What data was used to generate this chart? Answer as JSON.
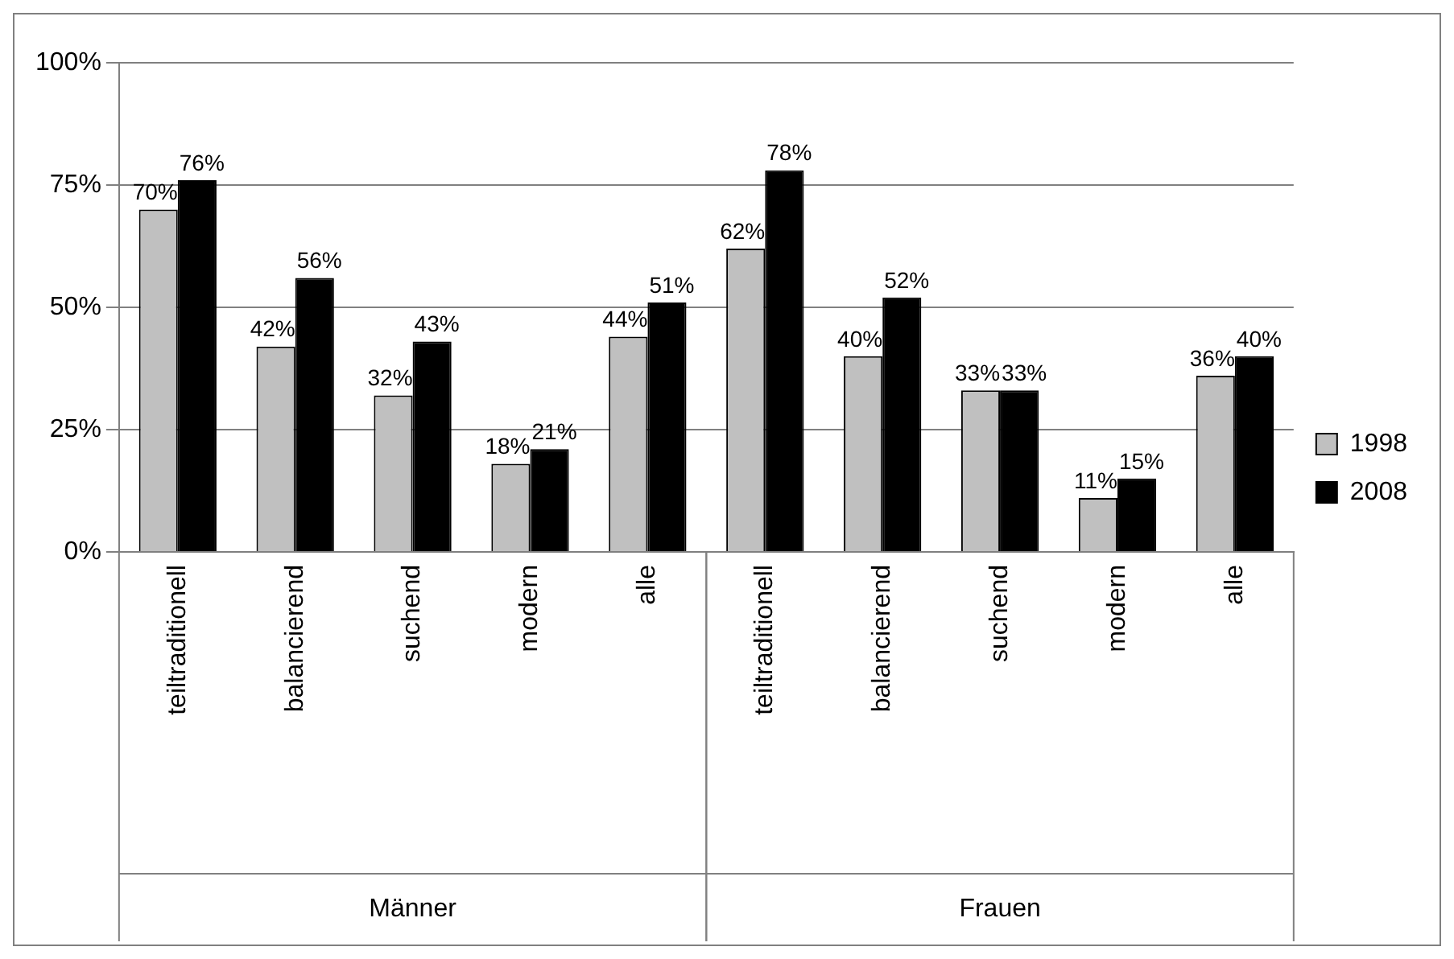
{
  "chart_data": {
    "type": "bar",
    "categories": [
      "teiltraditionell",
      "balancierend",
      "suchend",
      "modern",
      "alle",
      "teiltraditionell",
      "balancierend",
      "suchend",
      "modern",
      "alle"
    ],
    "series": [
      {
        "name": "1998",
        "color": "#c0c0c0",
        "values": [
          70,
          42,
          32,
          18,
          44,
          62,
          40,
          33,
          11,
          36
        ],
        "value_labels": [
          "70%",
          "42%",
          "32%",
          "18%",
          "44%",
          "62%",
          "40%",
          "33%",
          "11%",
          "36%"
        ]
      },
      {
        "name": "2008",
        "color": "#000000",
        "values": [
          76,
          56,
          43,
          21,
          51,
          78,
          52,
          33,
          15,
          40
        ],
        "value_labels": [
          "76%",
          "56%",
          "43%",
          "21%",
          "51%",
          "78%",
          "52%",
          "33%",
          "15%",
          "40%"
        ]
      }
    ],
    "annotations": [
      "Männer",
      "Frauen"
    ],
    "ylim": [
      0,
      100
    ],
    "yticks": [
      {
        "value": 0,
        "label": "0%"
      },
      {
        "value": 25,
        "label": "25%"
      },
      {
        "value": 50,
        "label": "50%"
      },
      {
        "value": 75,
        "label": "75%"
      },
      {
        "value": 100,
        "label": "100%"
      }
    ],
    "grid": "y",
    "legend": "right"
  }
}
